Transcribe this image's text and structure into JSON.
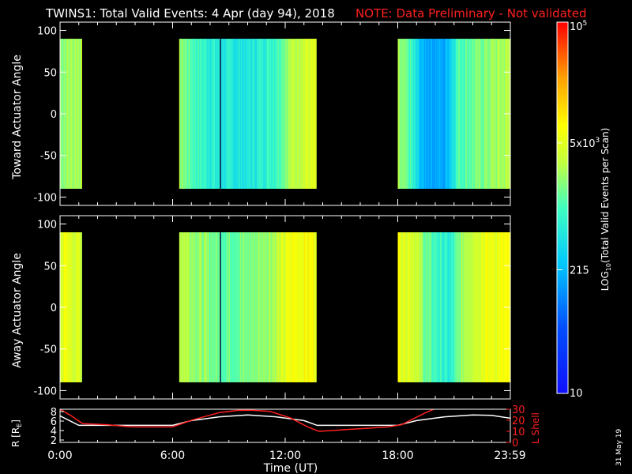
{
  "title": {
    "main": "TWINS1: Total Valid Events:  4 Apr (day  94), 2018",
    "note": "NOTE: Data Preliminary - Not validated",
    "note_color": "#ff2020"
  },
  "footer_date": "31 May 19",
  "chart_data": [
    {
      "type": "heatmap",
      "ylabel": "Toward Actuator Angle",
      "ylim": [
        -110,
        110
      ],
      "yticks": [
        100,
        50,
        0,
        -50,
        -100
      ],
      "xlim": [
        0,
        24
      ],
      "data_angle_range": [
        -90,
        90
      ],
      "segments": [
        {
          "start": 0.0,
          "end": 1.15,
          "left_log": 3.3,
          "right_log": 3.45
        },
        {
          "start": 6.35,
          "end": 13.65,
          "profile": [
            [
              6.35,
              3.35
            ],
            [
              7.2,
              3.0
            ],
            [
              8.5,
              2.75
            ],
            [
              10.0,
              2.7
            ],
            [
              11.5,
              3.0
            ],
            [
              12.2,
              3.4
            ],
            [
              12.9,
              3.6
            ],
            [
              13.65,
              3.65
            ]
          ]
        },
        {
          "start": 18.0,
          "end": 24.0,
          "profile": [
            [
              18.0,
              3.3
            ],
            [
              18.6,
              3.05
            ],
            [
              19.3,
              2.3
            ],
            [
              20.5,
              2.2
            ],
            [
              21.2,
              3.05
            ],
            [
              22.3,
              3.2
            ],
            [
              23.2,
              3.35
            ],
            [
              24.0,
              3.45
            ]
          ]
        }
      ]
    },
    {
      "type": "heatmap",
      "ylabel": "Away Actuator Angle",
      "ylim": [
        -110,
        110
      ],
      "yticks": [
        100,
        50,
        0,
        -50,
        -100
      ],
      "xlim": [
        0,
        24
      ],
      "data_angle_range": [
        -90,
        90
      ],
      "segments": [
        {
          "start": 0.0,
          "end": 1.15,
          "left_log": 3.75,
          "right_log": 3.6
        },
        {
          "start": 6.35,
          "end": 13.65,
          "profile": [
            [
              6.35,
              3.55
            ],
            [
              7.5,
              3.3
            ],
            [
              8.6,
              3.15
            ],
            [
              10.0,
              3.2
            ],
            [
              11.5,
              3.45
            ],
            [
              12.3,
              3.8
            ],
            [
              13.0,
              3.85
            ],
            [
              13.65,
              3.85
            ]
          ]
        },
        {
          "start": 18.0,
          "end": 24.0,
          "profile": [
            [
              18.0,
              3.8
            ],
            [
              18.8,
              3.7
            ],
            [
              19.6,
              3.1
            ],
            [
              20.8,
              2.75
            ],
            [
              21.6,
              3.5
            ],
            [
              22.5,
              3.75
            ],
            [
              24.0,
              3.8
            ]
          ]
        }
      ]
    },
    {
      "type": "line",
      "ylabel_left": "R [R",
      "ylabel_left_sub": "E",
      "ylabel_right": "L Shell",
      "xlabel": "Time (UT)",
      "x_tick_labels": [
        "0:00",
        "6:00",
        "12:00",
        "18:00",
        "23:59"
      ],
      "x_tick_values": [
        0,
        6,
        12,
        18,
        23.98
      ],
      "ylim_left": [
        1.5,
        8.5
      ],
      "yticks_left": [
        2,
        4,
        6,
        8
      ],
      "ylim_right": [
        0,
        30
      ],
      "yticks_right": [
        0,
        10,
        20,
        30
      ],
      "series": [
        {
          "axis": "left",
          "color": "#ffffff",
          "x": [
            0,
            1,
            6,
            7,
            8.5,
            10,
            11.5,
            13,
            13.7,
            18,
            19,
            20.5,
            22,
            23,
            24
          ],
          "y": [
            7.1,
            5.1,
            5.1,
            6.1,
            6.9,
            7.3,
            6.9,
            6.1,
            5.1,
            5.1,
            6.1,
            6.9,
            7.3,
            7.2,
            6.6
          ]
        },
        {
          "axis": "right",
          "color": "#ff2020",
          "x": [
            0,
            0.6,
            1.2,
            2.5,
            3.8,
            6.0,
            7.0,
            8.5,
            9.5,
            10.3,
            11.2,
            12.3,
            13.2,
            13.8,
            17.5,
            18.2,
            19.5,
            20.2,
            24
          ],
          "y": [
            30,
            24,
            17,
            16,
            14,
            14,
            20,
            27,
            29,
            29,
            28,
            22,
            14,
            10,
            14,
            16,
            27,
            32,
            36
          ]
        }
      ]
    }
  ],
  "colorbar": {
    "tick_labels": [
      "10",
      "215",
      "5x10",
      "10"
    ],
    "tick_superscripts": [
      "",
      "",
      "3",
      "5"
    ],
    "tick_log_values": [
      1.0,
      2.3324,
      3.699,
      5.0
    ],
    "log_range": [
      1.0,
      5.0
    ],
    "label_main": "LOG",
    "label_sub": "10",
    "label_rest": "(Total Valid Events per Scan)"
  }
}
